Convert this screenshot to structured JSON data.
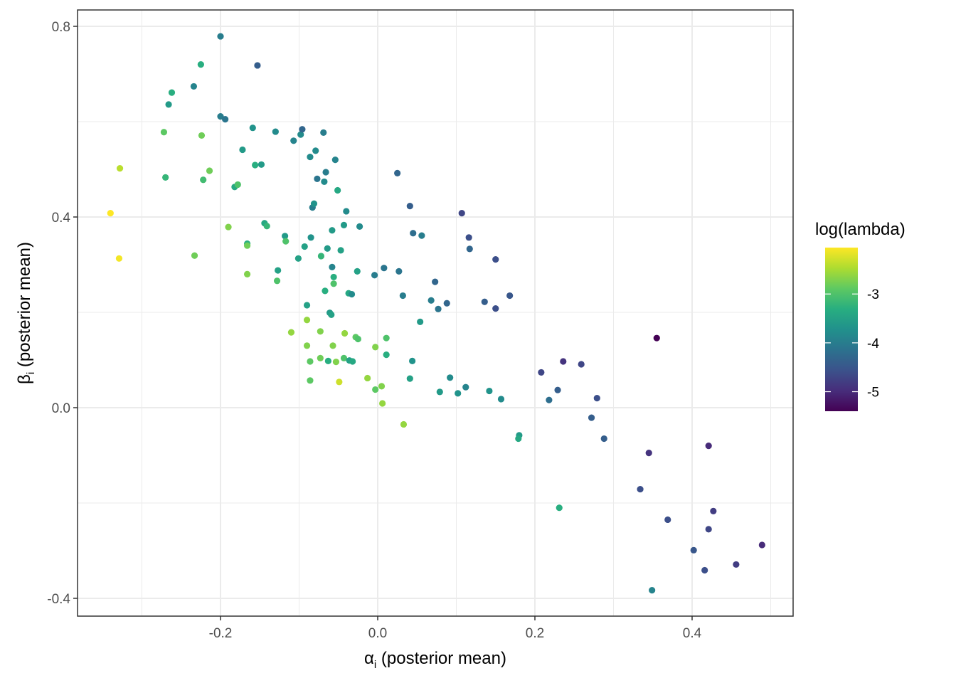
{
  "chart_data": {
    "type": "scatter",
    "title": "",
    "xlabel": "α_i (posterior mean)",
    "xlabel_symbol": "α",
    "xlabel_sub": "i",
    "xlabel_rest": " (posterior mean)",
    "ylabel": "β_i (posterior mean)",
    "ylabel_symbol": "β",
    "ylabel_sub": "i",
    "ylabel_rest": " (posterior mean)",
    "xlim": [
      -0.38,
      0.53
    ],
    "ylim": [
      -0.44,
      0.83
    ],
    "x_ticks": [
      -0.2,
      0.0,
      0.2,
      0.4
    ],
    "x_tick_labels": [
      "-0.2",
      "0.0",
      "0.2",
      "0.4"
    ],
    "y_ticks": [
      -0.4,
      0.0,
      0.4,
      0.8
    ],
    "y_tick_labels": [
      "-0.4",
      "0.0",
      "0.4",
      "0.8"
    ],
    "grid": true,
    "legend": {
      "title": "log(lambda)",
      "position": "right",
      "type": "colorbar",
      "palette": "viridis",
      "range": [
        -5.4,
        -2.05
      ],
      "breaks": [
        -3,
        -4,
        -5
      ],
      "break_labels": [
        "-3",
        "-4",
        "-5"
      ]
    },
    "points": [
      {
        "x": -0.34,
        "y": 0.408,
        "c": -2.05
      },
      {
        "x": -0.328,
        "y": 0.502,
        "c": -2.4
      },
      {
        "x": -0.329,
        "y": 0.313,
        "c": -2.1
      },
      {
        "x": -0.272,
        "y": 0.578,
        "c": -2.9
      },
      {
        "x": -0.27,
        "y": 0.483,
        "c": -3.2
      },
      {
        "x": -0.266,
        "y": 0.636,
        "c": -3.6
      },
      {
        "x": -0.262,
        "y": 0.661,
        "c": -3.3
      },
      {
        "x": -0.234,
        "y": 0.674,
        "c": -3.9
      },
      {
        "x": -0.233,
        "y": 0.319,
        "c": -2.8
      },
      {
        "x": -0.225,
        "y": 0.72,
        "c": -3.3
      },
      {
        "x": -0.224,
        "y": 0.571,
        "c": -2.8
      },
      {
        "x": -0.222,
        "y": 0.478,
        "c": -3.1
      },
      {
        "x": -0.214,
        "y": 0.497,
        "c": -2.8
      },
      {
        "x": -0.2,
        "y": 0.779,
        "c": -4.0
      },
      {
        "x": -0.2,
        "y": 0.611,
        "c": -4.0
      },
      {
        "x": -0.194,
        "y": 0.605,
        "c": -4.1
      },
      {
        "x": -0.19,
        "y": 0.379,
        "c": -2.7
      },
      {
        "x": -0.182,
        "y": 0.463,
        "c": -3.4
      },
      {
        "x": -0.178,
        "y": 0.468,
        "c": -3.0
      },
      {
        "x": -0.172,
        "y": 0.541,
        "c": -3.6
      },
      {
        "x": -0.166,
        "y": 0.344,
        "c": -3.3
      },
      {
        "x": -0.166,
        "y": 0.34,
        "c": -2.8
      },
      {
        "x": -0.166,
        "y": 0.28,
        "c": -2.7
      },
      {
        "x": -0.159,
        "y": 0.587,
        "c": -3.7
      },
      {
        "x": -0.156,
        "y": 0.509,
        "c": -3.3
      },
      {
        "x": -0.153,
        "y": 0.718,
        "c": -4.4
      },
      {
        "x": -0.148,
        "y": 0.51,
        "c": -3.6
      },
      {
        "x": -0.144,
        "y": 0.387,
        "c": -3.4
      },
      {
        "x": -0.141,
        "y": 0.381,
        "c": -3.2
      },
      {
        "x": -0.13,
        "y": 0.579,
        "c": -3.8
      },
      {
        "x": -0.128,
        "y": 0.266,
        "c": -3.0
      },
      {
        "x": -0.127,
        "y": 0.288,
        "c": -3.5
      },
      {
        "x": -0.118,
        "y": 0.36,
        "c": -3.6
      },
      {
        "x": -0.117,
        "y": 0.349,
        "c": -3.0
      },
      {
        "x": -0.11,
        "y": 0.158,
        "c": -2.6
      },
      {
        "x": -0.107,
        "y": 0.56,
        "c": -3.9
      },
      {
        "x": -0.101,
        "y": 0.313,
        "c": -3.5
      },
      {
        "x": -0.098,
        "y": 0.573,
        "c": -3.8
      },
      {
        "x": -0.096,
        "y": 0.584,
        "c": -4.3
      },
      {
        "x": -0.093,
        "y": 0.338,
        "c": -3.5
      },
      {
        "x": -0.09,
        "y": 0.215,
        "c": -3.5
      },
      {
        "x": -0.09,
        "y": 0.184,
        "c": -2.6
      },
      {
        "x": -0.09,
        "y": 0.13,
        "c": -2.7
      },
      {
        "x": -0.086,
        "y": 0.526,
        "c": -3.8
      },
      {
        "x": -0.086,
        "y": 0.097,
        "c": -2.9
      },
      {
        "x": -0.086,
        "y": 0.057,
        "c": -2.9
      },
      {
        "x": -0.085,
        "y": 0.357,
        "c": -3.7
      },
      {
        "x": -0.083,
        "y": 0.42,
        "c": -4.0
      },
      {
        "x": -0.081,
        "y": 0.428,
        "c": -3.7
      },
      {
        "x": -0.079,
        "y": 0.539,
        "c": -3.8
      },
      {
        "x": -0.077,
        "y": 0.48,
        "c": -4.1
      },
      {
        "x": -0.073,
        "y": 0.16,
        "c": -2.7
      },
      {
        "x": -0.073,
        "y": 0.104,
        "c": -2.8
      },
      {
        "x": -0.072,
        "y": 0.318,
        "c": -3.2
      },
      {
        "x": -0.069,
        "y": 0.577,
        "c": -4.0
      },
      {
        "x": -0.068,
        "y": 0.474,
        "c": -3.8
      },
      {
        "x": -0.067,
        "y": 0.245,
        "c": -3.3
      },
      {
        "x": -0.066,
        "y": 0.494,
        "c": -4.0
      },
      {
        "x": -0.064,
        "y": 0.334,
        "c": -3.6
      },
      {
        "x": -0.063,
        "y": 0.098,
        "c": -3.3
      },
      {
        "x": -0.061,
        "y": 0.199,
        "c": -3.6
      },
      {
        "x": -0.059,
        "y": 0.195,
        "c": -3.5
      },
      {
        "x": -0.058,
        "y": 0.295,
        "c": -3.9
      },
      {
        "x": -0.058,
        "y": 0.372,
        "c": -3.6
      },
      {
        "x": -0.057,
        "y": 0.13,
        "c": -2.7
      },
      {
        "x": -0.056,
        "y": 0.274,
        "c": -3.3
      },
      {
        "x": -0.056,
        "y": 0.26,
        "c": -3.0
      },
      {
        "x": -0.054,
        "y": 0.52,
        "c": -3.9
      },
      {
        "x": -0.053,
        "y": 0.096,
        "c": -2.7
      },
      {
        "x": -0.051,
        "y": 0.456,
        "c": -3.4
      },
      {
        "x": -0.049,
        "y": 0.054,
        "c": -2.3
      },
      {
        "x": -0.047,
        "y": 0.33,
        "c": -3.5
      },
      {
        "x": -0.043,
        "y": 0.383,
        "c": -3.6
      },
      {
        "x": -0.043,
        "y": 0.104,
        "c": -3.0
      },
      {
        "x": -0.042,
        "y": 0.156,
        "c": -2.6
      },
      {
        "x": -0.04,
        "y": 0.412,
        "c": -3.8
      },
      {
        "x": -0.037,
        "y": 0.24,
        "c": -3.4
      },
      {
        "x": -0.036,
        "y": 0.099,
        "c": -3.5
      },
      {
        "x": -0.033,
        "y": 0.238,
        "c": -3.8
      },
      {
        "x": -0.032,
        "y": 0.097,
        "c": -3.4
      },
      {
        "x": -0.028,
        "y": 0.148,
        "c": -2.9
      },
      {
        "x": -0.026,
        "y": 0.286,
        "c": -3.5
      },
      {
        "x": -0.025,
        "y": 0.144,
        "c": -3.0
      },
      {
        "x": -0.023,
        "y": 0.38,
        "c": -3.8
      },
      {
        "x": -0.013,
        "y": 0.062,
        "c": -2.6
      },
      {
        "x": -0.004,
        "y": 0.278,
        "c": -4.0
      },
      {
        "x": -0.003,
        "y": 0.127,
        "c": -2.7
      },
      {
        "x": -0.003,
        "y": 0.038,
        "c": -2.9
      },
      {
        "x": 0.005,
        "y": 0.045,
        "c": -2.7
      },
      {
        "x": 0.006,
        "y": 0.009,
        "c": -2.6
      },
      {
        "x": 0.008,
        "y": 0.293,
        "c": -4.1
      },
      {
        "x": 0.011,
        "y": 0.146,
        "c": -3.0
      },
      {
        "x": 0.011,
        "y": 0.111,
        "c": -3.3
      },
      {
        "x": 0.025,
        "y": 0.492,
        "c": -4.3
      },
      {
        "x": 0.027,
        "y": 0.286,
        "c": -4.1
      },
      {
        "x": 0.032,
        "y": 0.235,
        "c": -4.0
      },
      {
        "x": 0.033,
        "y": -0.035,
        "c": -2.6
      },
      {
        "x": 0.041,
        "y": 0.423,
        "c": -4.4
      },
      {
        "x": 0.041,
        "y": 0.061,
        "c": -3.5
      },
      {
        "x": 0.044,
        "y": 0.098,
        "c": -3.7
      },
      {
        "x": 0.045,
        "y": 0.366,
        "c": -4.2
      },
      {
        "x": 0.054,
        "y": 0.18,
        "c": -3.6
      },
      {
        "x": 0.056,
        "y": 0.361,
        "c": -4.0
      },
      {
        "x": 0.068,
        "y": 0.225,
        "c": -4.0
      },
      {
        "x": 0.073,
        "y": 0.264,
        "c": -4.3
      },
      {
        "x": 0.077,
        "y": 0.207,
        "c": -4.1
      },
      {
        "x": 0.079,
        "y": 0.033,
        "c": -3.6
      },
      {
        "x": 0.088,
        "y": 0.219,
        "c": -4.3
      },
      {
        "x": 0.092,
        "y": 0.063,
        "c": -3.8
      },
      {
        "x": 0.102,
        "y": 0.03,
        "c": -3.7
      },
      {
        "x": 0.107,
        "y": 0.408,
        "c": -4.7
      },
      {
        "x": 0.112,
        "y": 0.043,
        "c": -3.9
      },
      {
        "x": 0.116,
        "y": 0.357,
        "c": -4.6
      },
      {
        "x": 0.117,
        "y": 0.333,
        "c": -4.3
      },
      {
        "x": 0.136,
        "y": 0.222,
        "c": -4.4
      },
      {
        "x": 0.142,
        "y": 0.035,
        "c": -3.7
      },
      {
        "x": 0.15,
        "y": 0.311,
        "c": -4.6
      },
      {
        "x": 0.15,
        "y": 0.208,
        "c": -4.6
      },
      {
        "x": 0.157,
        "y": 0.018,
        "c": -3.8
      },
      {
        "x": 0.168,
        "y": 0.235,
        "c": -4.5
      },
      {
        "x": 0.18,
        "y": -0.058,
        "c": -3.6
      },
      {
        "x": 0.179,
        "y": -0.065,
        "c": -3.4
      },
      {
        "x": 0.208,
        "y": 0.074,
        "c": -4.7
      },
      {
        "x": 0.218,
        "y": 0.016,
        "c": -4.2
      },
      {
        "x": 0.229,
        "y": 0.037,
        "c": -4.4
      },
      {
        "x": 0.231,
        "y": -0.21,
        "c": -3.3
      },
      {
        "x": 0.236,
        "y": 0.097,
        "c": -4.9
      },
      {
        "x": 0.259,
        "y": 0.091,
        "c": -4.7
      },
      {
        "x": 0.272,
        "y": -0.021,
        "c": -4.4
      },
      {
        "x": 0.279,
        "y": 0.02,
        "c": -4.6
      },
      {
        "x": 0.288,
        "y": -0.065,
        "c": -4.4
      },
      {
        "x": 0.334,
        "y": -0.171,
        "c": -4.6
      },
      {
        "x": 0.345,
        "y": -0.095,
        "c": -4.9
      },
      {
        "x": 0.349,
        "y": -0.383,
        "c": -3.9
      },
      {
        "x": 0.355,
        "y": 0.146,
        "c": -5.4
      },
      {
        "x": 0.369,
        "y": -0.235,
        "c": -4.6
      },
      {
        "x": 0.402,
        "y": -0.299,
        "c": -4.5
      },
      {
        "x": 0.416,
        "y": -0.341,
        "c": -4.6
      },
      {
        "x": 0.421,
        "y": -0.08,
        "c": -5.0
      },
      {
        "x": 0.421,
        "y": -0.255,
        "c": -4.7
      },
      {
        "x": 0.427,
        "y": -0.217,
        "c": -4.8
      },
      {
        "x": 0.456,
        "y": -0.329,
        "c": -4.8
      },
      {
        "x": 0.489,
        "y": -0.288,
        "c": -5.0
      }
    ]
  }
}
